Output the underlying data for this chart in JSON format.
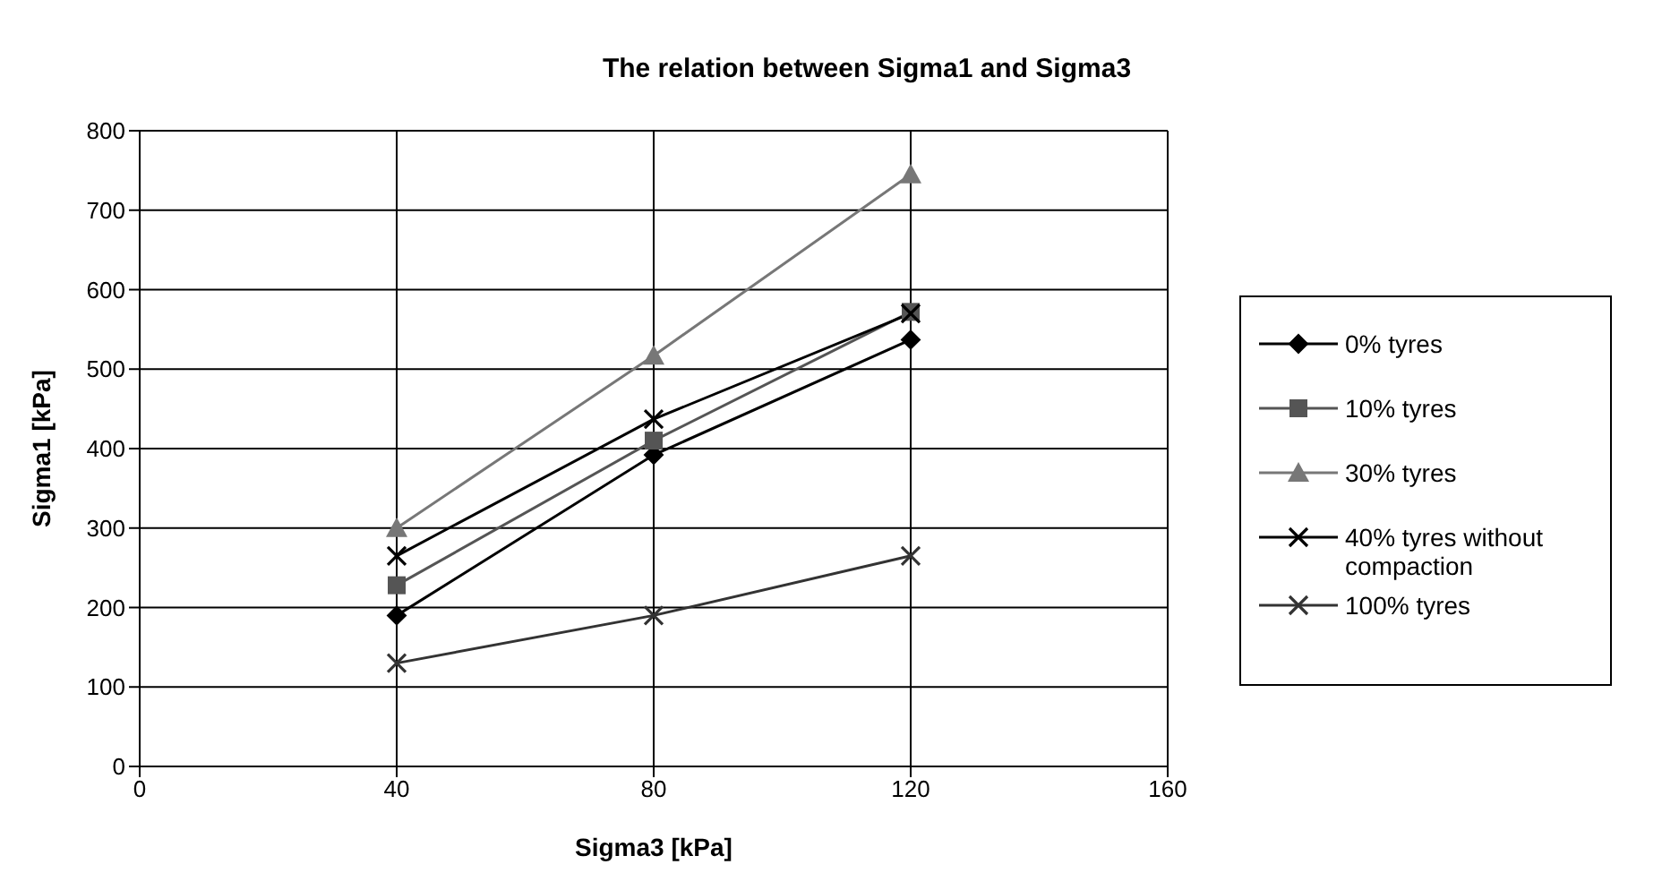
{
  "chart_data": {
    "type": "line",
    "title": "The relation between Sigma1 and Sigma3",
    "xlabel": "Sigma3 [kPa]",
    "ylabel": "Sigma1 [kPa]",
    "x": [
      40,
      80,
      120
    ],
    "xlim": [
      0,
      160
    ],
    "xticks": [
      0,
      40,
      80,
      120,
      160
    ],
    "ylim": [
      0,
      800
    ],
    "yticks": [
      0,
      100,
      200,
      300,
      400,
      500,
      600,
      700,
      800
    ],
    "grid": true,
    "legend": "right",
    "line_style": "solid",
    "series": [
      {
        "name": "0% tyres",
        "color": "#000000",
        "marker": "diamond",
        "values": [
          190,
          392,
          537
        ]
      },
      {
        "name": "10% tyres",
        "color": "#555555",
        "marker": "square",
        "values": [
          228,
          410,
          572
        ]
      },
      {
        "name": "30% tyres",
        "color": "#777777",
        "marker": "triangle",
        "values": [
          300,
          517,
          745
        ]
      },
      {
        "name": "40% tyres without compaction",
        "color": "#000000",
        "marker": "cross",
        "values": [
          265,
          437,
          570
        ]
      },
      {
        "name": "100% tyres",
        "color": "#333333",
        "marker": "cross",
        "values": [
          130,
          190,
          265
        ]
      }
    ]
  }
}
